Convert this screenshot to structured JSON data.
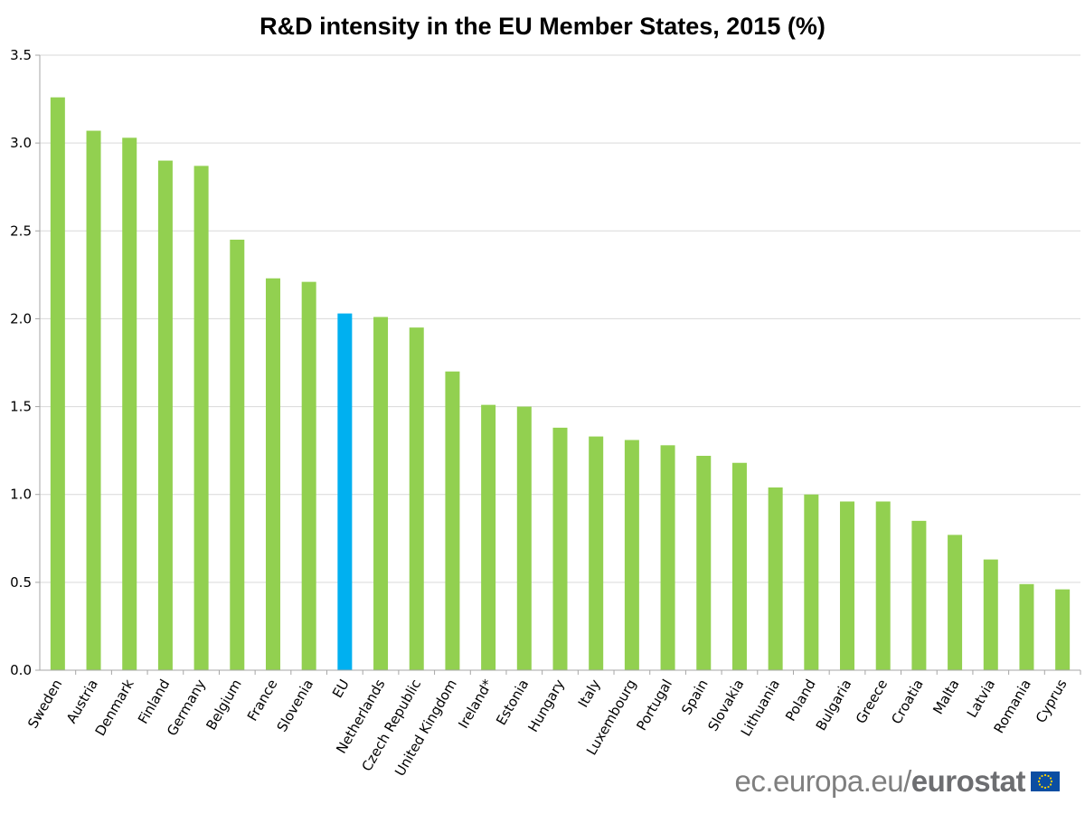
{
  "chart_data": {
    "type": "bar",
    "title": "R&D intensity in the EU Member States, 2015 (%)",
    "xlabel": "",
    "ylabel": "",
    "ylim": [
      0,
      3.5
    ],
    "yticks": [
      0.0,
      0.5,
      1.0,
      1.5,
      2.0,
      2.5,
      3.0,
      3.5
    ],
    "ytick_labels": [
      "0.0",
      "0.5",
      "1.0",
      "1.5",
      "2.0",
      "2.5",
      "3.0",
      "3.5"
    ],
    "grid": true,
    "legend": "none",
    "categories": [
      "Sweden",
      "Austria",
      "Denmark",
      "Finland",
      "Germany",
      "Belgium",
      "France",
      "Slovenia",
      "EU",
      "Netherlands",
      "Czech Republic",
      "United Kingdom",
      "Ireland*",
      "Estonia",
      "Hungary",
      "Italy",
      "Luxembourg",
      "Portugal",
      "Spain",
      "Slovakia",
      "Lithuania",
      "Poland",
      "Bulgaria",
      "Greece",
      "Croatia",
      "Malta",
      "Latvia",
      "Romania",
      "Cyprus"
    ],
    "values": [
      3.26,
      3.07,
      3.03,
      2.9,
      2.87,
      2.45,
      2.23,
      2.21,
      2.03,
      2.01,
      1.95,
      1.7,
      1.51,
      1.5,
      1.38,
      1.33,
      1.31,
      1.28,
      1.22,
      1.18,
      1.04,
      1.0,
      0.96,
      0.96,
      0.85,
      0.77,
      0.63,
      0.49,
      0.46
    ],
    "colors": {
      "default_bar": "#92d050",
      "highlight_bar": "#00b0f0",
      "highlight_category": "EU",
      "gridline": "#d9d9d9",
      "axis": "#a6a6a6"
    }
  },
  "brand": {
    "prefix": "ec.europa.eu/",
    "name": "eurostat",
    "icon": "eu-flag-icon"
  }
}
